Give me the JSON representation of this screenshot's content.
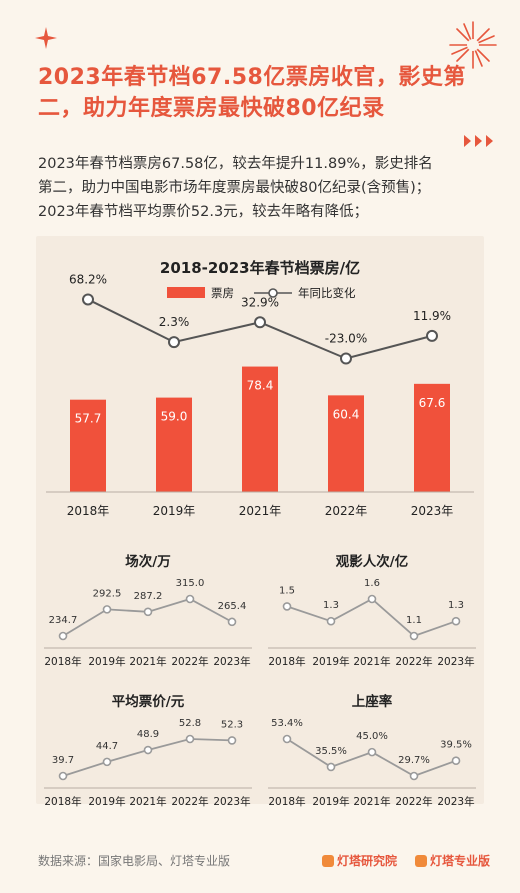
{
  "header": {
    "title": "2023年春节档67.58亿票房收官，影史第二，助力年度票房最快破80亿纪录"
  },
  "description": {
    "line1": "2023年春节档票房67.58亿，较去年提升11.89%，影史排名",
    "line2": "第二，助力中国电影市场年度票房最快破80亿纪录(含预售)；",
    "line3": "2023年春节档平均票价52.3元，较去年略有降低；"
  },
  "colors": {
    "accent": "#e6573d",
    "bar": "#f0513b",
    "line": "#555555",
    "smallLine": "#9a9a9a"
  },
  "chart_data": [
    {
      "type": "bar",
      "title": "2018-2023年春节档票房/亿",
      "categories": [
        "2018年",
        "2019年",
        "2021年",
        "2022年",
        "2023年"
      ],
      "series": [
        {
          "name": "票房",
          "values": [
            57.7,
            59.0,
            78.4,
            60.4,
            67.6
          ],
          "labels": [
            "57.7",
            "59.0",
            "78.4",
            "60.4",
            "67.6"
          ]
        },
        {
          "name": "年同比变化",
          "type": "line",
          "values": [
            68.2,
            2.3,
            32.9,
            -23.0,
            11.9
          ],
          "labels": [
            "68.2%",
            "2.3%",
            "32.9%",
            "-23.0%",
            "11.9%"
          ]
        }
      ],
      "legend": "top-center"
    },
    {
      "type": "line",
      "title": "场次/万",
      "categories": [
        "2018年",
        "2019年",
        "2021年",
        "2022年",
        "2023年"
      ],
      "values": [
        234.7,
        292.5,
        287.2,
        315.0,
        265.4
      ],
      "labels": [
        "234.7",
        "292.5",
        "287.2",
        "315.0",
        "265.4"
      ]
    },
    {
      "type": "line",
      "title": "观影人次/亿",
      "categories": [
        "2018年",
        "2019年",
        "2021年",
        "2022年",
        "2023年"
      ],
      "values": [
        1.5,
        1.3,
        1.6,
        1.1,
        1.3
      ],
      "labels": [
        "1.5",
        "1.3",
        "1.6",
        "1.1",
        "1.3"
      ]
    },
    {
      "type": "line",
      "title": "平均票价/元",
      "categories": [
        "2018年",
        "2019年",
        "2021年",
        "2022年",
        "2023年"
      ],
      "values": [
        39.7,
        44.7,
        48.9,
        52.8,
        52.3
      ],
      "labels": [
        "39.7",
        "44.7",
        "48.9",
        "52.8",
        "52.3"
      ]
    },
    {
      "type": "line",
      "title": "上座率",
      "categories": [
        "2018年",
        "2019年",
        "2021年",
        "2022年",
        "2023年"
      ],
      "values": [
        53.4,
        35.5,
        45.0,
        29.7,
        39.5
      ],
      "labels": [
        "53.4%",
        "35.5%",
        "45.0%",
        "29.7%",
        "39.5%"
      ]
    }
  ],
  "footer": {
    "source": "数据来源：国家电影局、灯塔专业版",
    "brand1": "灯塔研究院",
    "brand2": "灯塔专业版"
  }
}
